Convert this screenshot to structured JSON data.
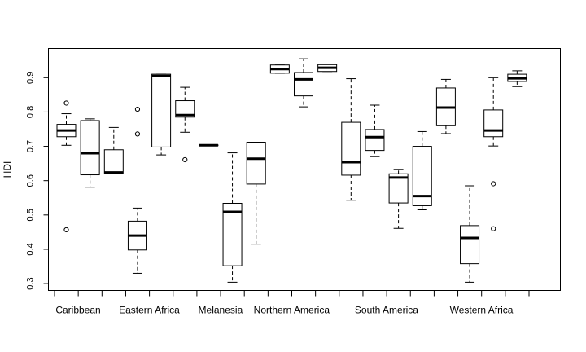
{
  "chart_data": {
    "type": "boxplot",
    "title": "",
    "xlabel": "",
    "ylabel": "HDI",
    "ylim": [
      0.28,
      0.985
    ],
    "yticks": [
      "0.3",
      "0.4",
      "0.5",
      "0.6",
      "0.7",
      "0.8",
      "0.9"
    ],
    "ytick_values": [
      0.3,
      0.4,
      0.5,
      0.6,
      0.7,
      0.8,
      0.9
    ],
    "grid": false,
    "legend": "none",
    "x_tick_count": 21,
    "categories": [
      "Caribbean",
      "Eastern Africa",
      "Melanesia",
      "Northern America",
      "South America",
      "Western Africa"
    ],
    "category_label_positions": [
      1,
      4,
      7,
      10,
      14,
      18
    ],
    "boxes": [
      {
        "position": 1,
        "min": 0.703,
        "q1": 0.728,
        "median": 0.746,
        "q3": 0.764,
        "max": 0.795,
        "outliers": [
          0.826,
          0.457
        ]
      },
      {
        "position": 2,
        "min": 0.581,
        "q1": 0.617,
        "median": 0.68,
        "q3": 0.775,
        "max": 0.78,
        "outliers": []
      },
      {
        "position": 3,
        "min": 0.622,
        "q1": 0.622,
        "median": 0.624,
        "q3": 0.69,
        "max": 0.755,
        "outliers": []
      },
      {
        "position": 4,
        "min": 0.33,
        "q1": 0.398,
        "median": 0.44,
        "q3": 0.482,
        "max": 0.52,
        "outliers": [
          0.808,
          0.736
        ]
      },
      {
        "position": 5,
        "min": 0.675,
        "q1": 0.698,
        "median": 0.905,
        "q3": 0.91,
        "max": 0.91,
        "outliers": []
      },
      {
        "position": 6,
        "min": 0.741,
        "q1": 0.785,
        "median": 0.791,
        "q3": 0.833,
        "max": 0.872,
        "outliers": [
          0.661
        ]
      },
      {
        "position": 7,
        "min": 0.702,
        "q1": 0.702,
        "median": 0.703,
        "q3": 0.704,
        "max": 0.704,
        "outliers": []
      },
      {
        "position": 8,
        "min": 0.304,
        "q1": 0.352,
        "median": 0.509,
        "q3": 0.534,
        "max": 0.681,
        "outliers": []
      },
      {
        "position": 9,
        "min": 0.415,
        "q1": 0.59,
        "median": 0.664,
        "q3": 0.712,
        "max": 0.712,
        "outliers": []
      },
      {
        "position": 10,
        "min": 0.913,
        "q1": 0.913,
        "median": 0.925,
        "q3": 0.937,
        "max": 0.937,
        "outliers": []
      },
      {
        "position": 11,
        "min": 0.815,
        "q1": 0.847,
        "median": 0.895,
        "q3": 0.915,
        "max": 0.955,
        "outliers": []
      },
      {
        "position": 12,
        "min": 0.918,
        "q1": 0.918,
        "median": 0.929,
        "q3": 0.938,
        "max": 0.938,
        "outliers": []
      },
      {
        "position": 13,
        "min": 0.543,
        "q1": 0.616,
        "median": 0.654,
        "q3": 0.77,
        "max": 0.897,
        "outliers": []
      },
      {
        "position": 14,
        "min": 0.67,
        "q1": 0.688,
        "median": 0.727,
        "q3": 0.749,
        "max": 0.82,
        "outliers": []
      },
      {
        "position": 15,
        "min": 0.461,
        "q1": 0.535,
        "median": 0.609,
        "q3": 0.62,
        "max": 0.632,
        "outliers": []
      },
      {
        "position": 16,
        "min": 0.515,
        "q1": 0.527,
        "median": 0.555,
        "q3": 0.7,
        "max": 0.743,
        "outliers": []
      },
      {
        "position": 17,
        "min": 0.737,
        "q1": 0.76,
        "median": 0.813,
        "q3": 0.87,
        "max": 0.895,
        "outliers": []
      },
      {
        "position": 18,
        "min": 0.304,
        "q1": 0.358,
        "median": 0.433,
        "q3": 0.469,
        "max": 0.585,
        "outliers": []
      },
      {
        "position": 19,
        "min": 0.701,
        "q1": 0.728,
        "median": 0.746,
        "q3": 0.806,
        "max": 0.9,
        "outliers": [
          0.591,
          0.46
        ]
      },
      {
        "position": 20,
        "min": 0.874,
        "q1": 0.889,
        "median": 0.898,
        "q3": 0.91,
        "max": 0.92,
        "outliers": []
      }
    ]
  }
}
